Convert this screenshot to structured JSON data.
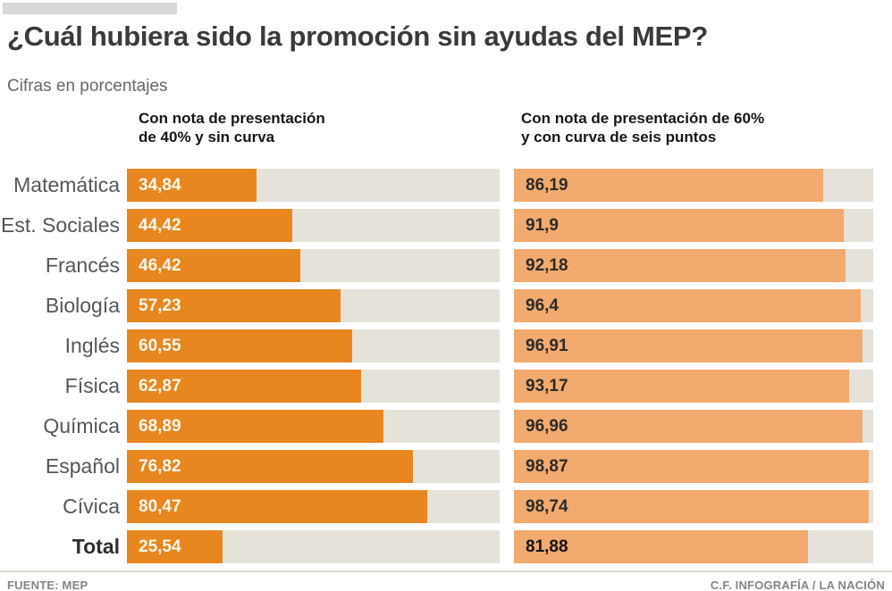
{
  "header": {
    "title": "¿Cuál hubiera sido la promoción sin ayudas del MEP?",
    "subtitle": "Cifras en porcentajes"
  },
  "columns": {
    "left": {
      "heading_line1": "Con nota de presentación",
      "heading_line2": "de 40% y sin curva"
    },
    "right": {
      "heading_line1": "Con nota de presentación de 60%",
      "heading_line2": "y con curva de seis puntos"
    }
  },
  "chart_data": {
    "type": "bar",
    "orientation": "horizontal",
    "title": "¿Cuál hubiera sido la promoción sin ayudas del MEP?",
    "subtitle": "Cifras en porcentajes",
    "unit": "percent",
    "xlim": [
      0,
      100
    ],
    "grid": false,
    "legend_position": "column-headers",
    "categories": [
      "Matemática",
      "Est. Sociales",
      "Francés",
      "Biología",
      "Inglés",
      "Física",
      "Química",
      "Español",
      "Cívica",
      "Total"
    ],
    "series": [
      {
        "name": "Con nota de presentación de 40% y sin curva",
        "values": [
          34.84,
          44.42,
          46.42,
          57.23,
          60.55,
          62.87,
          68.89,
          76.82,
          80.47,
          25.54
        ],
        "bar_color": "#e8871f",
        "value_label_color": "#ffffff"
      },
      {
        "name": "Con nota de presentación de 60% y con curva de seis puntos",
        "values": [
          86.19,
          91.9,
          92.18,
          96.4,
          96.91,
          93.17,
          96.96,
          98.87,
          98.74,
          81.88
        ],
        "bar_color": "#f2aa6e",
        "value_label_color": "#2b2b2b"
      }
    ],
    "track_color": "#e5e2d9"
  },
  "rows": [
    {
      "label": "Matemática",
      "left_display": "34,84",
      "left_value": 34.84,
      "right_display": "86,19",
      "right_value": 86.19,
      "is_total": false
    },
    {
      "label": "Est. Sociales",
      "left_display": "44,42",
      "left_value": 44.42,
      "right_display": "91,9",
      "right_value": 91.9,
      "is_total": false
    },
    {
      "label": "Francés",
      "left_display": "46,42",
      "left_value": 46.42,
      "right_display": "92,18",
      "right_value": 92.18,
      "is_total": false
    },
    {
      "label": "Biología",
      "left_display": "57,23",
      "left_value": 57.23,
      "right_display": "96,4",
      "right_value": 96.4,
      "is_total": false
    },
    {
      "label": "Inglés",
      "left_display": "60,55",
      "left_value": 60.55,
      "right_display": "96,91",
      "right_value": 96.91,
      "is_total": false
    },
    {
      "label": "Física",
      "left_display": "62,87",
      "left_value": 62.87,
      "right_display": "93,17",
      "right_value": 93.17,
      "is_total": false
    },
    {
      "label": "Química",
      "left_display": "68,89",
      "left_value": 68.89,
      "right_display": "96,96",
      "right_value": 96.96,
      "is_total": false
    },
    {
      "label": "Español",
      "left_display": "76,82",
      "left_value": 76.82,
      "right_display": "98,87",
      "right_value": 98.87,
      "is_total": false
    },
    {
      "label": "Cívica",
      "left_display": "80,47",
      "left_value": 80.47,
      "right_display": "98,74",
      "right_value": 98.74,
      "is_total": false
    },
    {
      "label": "Total",
      "left_display": "25,54",
      "left_value": 25.54,
      "right_display": "81,88",
      "right_value": 81.88,
      "is_total": true
    }
  ],
  "footer": {
    "source": "FUENTE: MEP",
    "credit": "C.F. INFOGRAFÍA / LA NACIÓN"
  },
  "colors": {
    "bar_dark_orange": "#e8871f",
    "bar_light_orange": "#f2aa6e",
    "track_gray": "#e5e2d9",
    "title_text": "#3a3a3a",
    "label_gray": "#55565a",
    "footer_gray": "#84858a",
    "topbar_gray": "#d8d8d8"
  }
}
